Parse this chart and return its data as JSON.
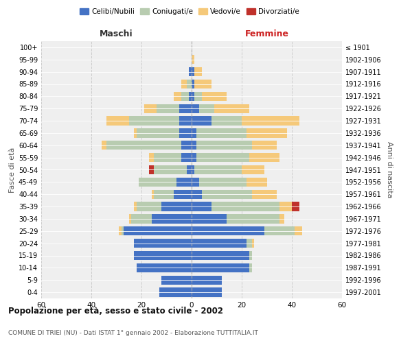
{
  "age_groups": [
    "0-4",
    "5-9",
    "10-14",
    "15-19",
    "20-24",
    "25-29",
    "30-34",
    "35-39",
    "40-44",
    "45-49",
    "50-54",
    "55-59",
    "60-64",
    "65-69",
    "70-74",
    "75-79",
    "80-84",
    "85-89",
    "90-94",
    "95-99",
    "100+"
  ],
  "birth_years": [
    "1997-2001",
    "1992-1996",
    "1987-1991",
    "1982-1986",
    "1977-1981",
    "1972-1976",
    "1967-1971",
    "1962-1966",
    "1957-1961",
    "1952-1956",
    "1947-1951",
    "1942-1946",
    "1937-1941",
    "1932-1936",
    "1927-1931",
    "1922-1926",
    "1917-1921",
    "1912-1916",
    "1907-1911",
    "1902-1906",
    "≤ 1901"
  ],
  "maschi": {
    "celibi": [
      13,
      12,
      22,
      23,
      23,
      27,
      16,
      12,
      7,
      6,
      2,
      4,
      4,
      5,
      5,
      5,
      1,
      0,
      1,
      0,
      0
    ],
    "coniugati": [
      0,
      0,
      0,
      0,
      0,
      1,
      8,
      10,
      8,
      15,
      13,
      11,
      30,
      17,
      20,
      9,
      3,
      2,
      0,
      0,
      0
    ],
    "vedovi": [
      0,
      0,
      0,
      0,
      0,
      1,
      1,
      1,
      1,
      0,
      0,
      2,
      2,
      1,
      9,
      5,
      3,
      2,
      0,
      0,
      0
    ],
    "divorziati": [
      0,
      0,
      0,
      0,
      0,
      0,
      0,
      0,
      0,
      0,
      2,
      0,
      0,
      0,
      0,
      0,
      0,
      0,
      0,
      0,
      0
    ]
  },
  "femmine": {
    "nubili": [
      12,
      12,
      23,
      23,
      22,
      29,
      14,
      8,
      4,
      3,
      1,
      2,
      2,
      2,
      8,
      3,
      1,
      1,
      1,
      0,
      0
    ],
    "coniugate": [
      0,
      0,
      1,
      1,
      2,
      12,
      21,
      27,
      20,
      19,
      19,
      21,
      22,
      20,
      12,
      6,
      3,
      0,
      0,
      0,
      0
    ],
    "vedove": [
      0,
      0,
      0,
      0,
      1,
      3,
      2,
      5,
      10,
      8,
      9,
      12,
      10,
      16,
      23,
      14,
      10,
      7,
      3,
      1,
      0
    ],
    "divorziate": [
      0,
      0,
      0,
      0,
      0,
      0,
      0,
      3,
      0,
      0,
      0,
      0,
      0,
      0,
      0,
      0,
      0,
      0,
      0,
      0,
      0
    ]
  },
  "colors": {
    "celibi_nubili": "#4472C4",
    "coniugati": "#B8CCB0",
    "vedovi": "#F5C97A",
    "divorziati": "#C0312B"
  },
  "title": "Popolazione per età, sesso e stato civile - 2002",
  "subtitle": "COMUNE DI TRIEI (NU) - Dati ISTAT 1° gennaio 2002 - Elaborazione TUTTITALIA.IT",
  "xlabel_left": "Maschi",
  "xlabel_right": "Femmine",
  "ylabel_left": "Fasce di età",
  "ylabel_right": "Anni di nascita",
  "xlim": 60,
  "background_color": "#ffffff",
  "plot_bg": "#efefef"
}
